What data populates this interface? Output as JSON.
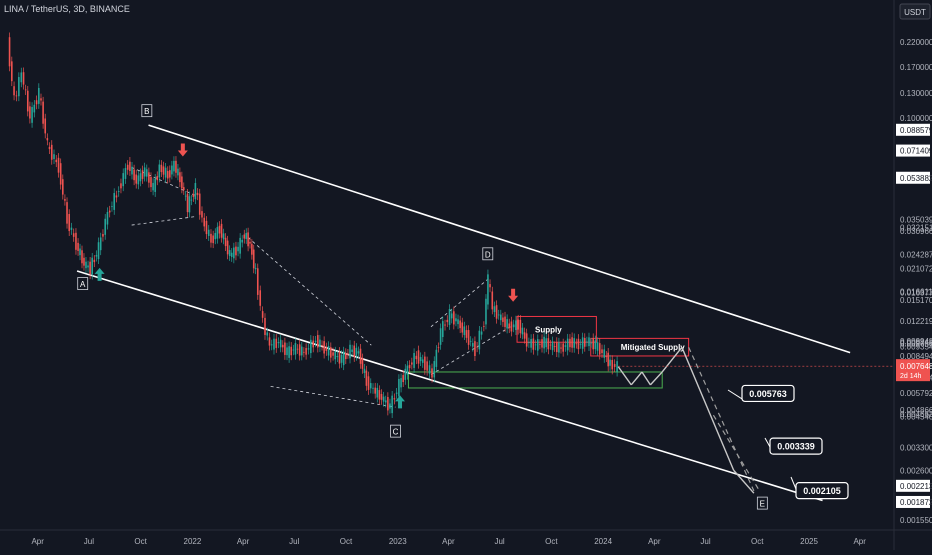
{
  "header": {
    "symbol_line": "LINA / TetherUS, 3D, BINANCE",
    "currency": "USDT"
  },
  "chart_data": {
    "type": "candlestick",
    "title": "LINA / TetherUS, 3D, BINANCE",
    "y_scale": "log",
    "ylim": [
      0.0014,
      0.34
    ],
    "x_range": [
      "2021-01-24",
      "2025-06-01"
    ],
    "y_tick_labels": [
      "0.220000",
      "0.170000",
      "0.130000",
      "0.100000",
      "0.053882",
      "0.035039",
      "0.032151",
      "0.030966",
      "0.024287",
      "0.021072",
      "0.016611",
      "0.016377",
      "0.015170",
      "0.012219",
      "0.009948",
      "0.009748",
      "0.009656",
      "0.009354",
      "0.008494",
      "0.006804",
      "0.005792",
      "0.004866",
      "0.004662",
      "0.004540",
      "0.003300",
      "0.002600",
      "0.002213",
      "0.001872",
      "0.001550"
    ],
    "y_tick_values": [
      0.22,
      0.17,
      0.13,
      0.1,
      0.053882,
      0.035039,
      0.032151,
      0.030966,
      0.024287,
      0.021072,
      0.016611,
      0.016377,
      0.01517,
      0.012219,
      0.009948,
      0.009748,
      0.009656,
      0.009354,
      0.008494,
      0.006804,
      0.005792,
      0.004866,
      0.004662,
      0.00454,
      0.0033,
      0.0026,
      0.002213,
      0.001872,
      0.00155
    ],
    "highlighted_levels": [
      {
        "label": "0.088579",
        "value": 0.088579
      },
      {
        "label": "0.071409",
        "value": 0.071409
      },
      {
        "label": "0.053882",
        "value": 0.053882
      },
      {
        "label": "0.002213",
        "value": 0.002213
      },
      {
        "label": "0.001872",
        "value": 0.001872
      }
    ],
    "current_price": {
      "label": "0.007648",
      "value": 0.007648,
      "countdown": "2d 14h"
    },
    "x_ticks": [
      {
        "label": "Apr",
        "date": "2021-04-01"
      },
      {
        "label": "Jul",
        "date": "2021-07-01"
      },
      {
        "label": "Oct",
        "date": "2021-10-01"
      },
      {
        "label": "2022",
        "date": "2022-01-01"
      },
      {
        "label": "Apr",
        "date": "2022-04-01"
      },
      {
        "label": "Jul",
        "date": "2022-07-01"
      },
      {
        "label": "Oct",
        "date": "2022-10-01"
      },
      {
        "label": "2023",
        "date": "2023-01-01"
      },
      {
        "label": "Apr",
        "date": "2023-04-01"
      },
      {
        "label": "Jul",
        "date": "2023-07-01"
      },
      {
        "label": "Oct",
        "date": "2023-10-01"
      },
      {
        "label": "2024",
        "date": "2024-01-01"
      },
      {
        "label": "Apr",
        "date": "2024-04-01"
      },
      {
        "label": "Jul",
        "date": "2024-07-01"
      },
      {
        "label": "Oct",
        "date": "2024-10-01"
      },
      {
        "label": "2025",
        "date": "2025-01-01"
      },
      {
        "label": "Apr",
        "date": "2025-04-01"
      }
    ],
    "price_path": [
      [
        "2021-02-08",
        0.22
      ],
      [
        "2021-02-20",
        0.12
      ],
      [
        "2021-03-05",
        0.16
      ],
      [
        "2021-03-20",
        0.1
      ],
      [
        "2021-04-05",
        0.13
      ],
      [
        "2021-04-20",
        0.075
      ],
      [
        "2021-05-10",
        0.06
      ],
      [
        "2021-05-25",
        0.035
      ],
      [
        "2021-06-10",
        0.027
      ],
      [
        "2021-06-24",
        0.022
      ],
      [
        "2021-07-05",
        0.021
      ],
      [
        "2021-07-20",
        0.026
      ],
      [
        "2021-08-05",
        0.037
      ],
      [
        "2021-08-25",
        0.048
      ],
      [
        "2021-09-10",
        0.062
      ],
      [
        "2021-09-25",
        0.052
      ],
      [
        "2021-10-10",
        0.058
      ],
      [
        "2021-10-25",
        0.048
      ],
      [
        "2021-11-05",
        0.06
      ],
      [
        "2021-11-20",
        0.055
      ],
      [
        "2021-12-01",
        0.062
      ],
      [
        "2021-12-15",
        0.05
      ],
      [
        "2021-12-25",
        0.04
      ],
      [
        "2022-01-08",
        0.048
      ],
      [
        "2022-01-20",
        0.035
      ],
      [
        "2022-02-05",
        0.028
      ],
      [
        "2022-02-20",
        0.032
      ],
      [
        "2022-03-10",
        0.024
      ],
      [
        "2022-03-25",
        0.026
      ],
      [
        "2022-04-05",
        0.03
      ],
      [
        "2022-04-15",
        0.027
      ],
      [
        "2022-04-25",
        0.02
      ],
      [
        "2022-05-08",
        0.012
      ],
      [
        "2022-05-20",
        0.0095
      ],
      [
        "2022-06-05",
        0.0098
      ],
      [
        "2022-06-20",
        0.0088
      ],
      [
        "2022-07-05",
        0.0092
      ],
      [
        "2022-07-20",
        0.0088
      ],
      [
        "2022-08-10",
        0.01
      ],
      [
        "2022-08-25",
        0.0092
      ],
      [
        "2022-09-10",
        0.0086
      ],
      [
        "2022-09-25",
        0.0082
      ],
      [
        "2022-10-10",
        0.009
      ],
      [
        "2022-10-25",
        0.0088
      ],
      [
        "2022-11-08",
        0.0065
      ],
      [
        "2022-11-20",
        0.006
      ],
      [
        "2022-12-05",
        0.0055
      ],
      [
        "2022-12-20",
        0.005
      ],
      [
        "2023-01-05",
        0.0063
      ],
      [
        "2023-01-20",
        0.0075
      ],
      [
        "2023-02-05",
        0.0085
      ],
      [
        "2023-02-20",
        0.0078
      ],
      [
        "2023-03-05",
        0.007
      ],
      [
        "2023-03-20",
        0.011
      ],
      [
        "2023-04-05",
        0.013
      ],
      [
        "2023-04-20",
        0.012
      ],
      [
        "2023-05-05",
        0.0105
      ],
      [
        "2023-05-20",
        0.009
      ],
      [
        "2023-06-05",
        0.012
      ],
      [
        "2023-06-12",
        0.019
      ],
      [
        "2023-06-20",
        0.014
      ],
      [
        "2023-07-05",
        0.0125
      ],
      [
        "2023-07-20",
        0.0115
      ],
      [
        "2023-08-05",
        0.0118
      ],
      [
        "2023-08-20",
        0.0098
      ],
      [
        "2023-09-05",
        0.0095
      ],
      [
        "2023-09-20",
        0.0098
      ],
      [
        "2023-10-05",
        0.0094
      ],
      [
        "2023-10-20",
        0.0092
      ],
      [
        "2023-11-05",
        0.0098
      ],
      [
        "2023-11-20",
        0.0096
      ],
      [
        "2023-12-05",
        0.0099
      ],
      [
        "2023-12-20",
        0.0095
      ],
      [
        "2024-01-05",
        0.0086
      ],
      [
        "2024-01-15",
        0.0078
      ],
      [
        "2024-01-28",
        0.0076
      ]
    ],
    "channel_lines": [
      {
        "from": [
          "2021-10-15",
          0.093
        ],
        "to": [
          "2025-03-15",
          0.0088
        ]
      },
      {
        "from": [
          "2021-06-10",
          0.0205
        ],
        "to": [
          "2025-01-25",
          0.0019
        ]
      }
    ],
    "zones": [
      {
        "label": "Supply",
        "from": [
          "2023-08-01",
          0.0128
        ],
        "to": [
          "2023-12-20",
          0.0098
        ]
      },
      {
        "label": "Mitigated Supply",
        "from": [
          "2023-12-10",
          0.0102
        ],
        "to": [
          "2024-06-01",
          0.0085
        ]
      },
      {
        "label": "",
        "from": [
          "2023-01-20",
          0.0072
        ],
        "to": [
          "2024-04-15",
          0.0061
        ]
      }
    ],
    "wave_labels": [
      {
        "label": "A",
        "date": "2021-06-20",
        "value": 0.018
      },
      {
        "label": "B",
        "date": "2021-10-12",
        "value": 0.108
      },
      {
        "label": "C",
        "date": "2022-12-28",
        "value": 0.0039
      },
      {
        "label": "D",
        "date": "2023-06-10",
        "value": 0.0245
      },
      {
        "label": "E",
        "date": "2024-10-10",
        "value": 0.00185
      }
    ],
    "target_callouts": [
      {
        "label": "0.005763",
        "value": 0.005763
      },
      {
        "label": "0.003339",
        "value": 0.003339
      },
      {
        "label": "0.002105",
        "value": 0.002105
      }
    ],
    "arrows": [
      {
        "dir": "up",
        "date": "2021-07-20",
        "value": 0.0195,
        "color": "#26a69a"
      },
      {
        "dir": "down",
        "date": "2021-12-15",
        "value": 0.073,
        "color": "#ef5350"
      },
      {
        "dir": "up",
        "date": "2023-01-05",
        "value": 0.0052,
        "color": "#26a69a"
      },
      {
        "dir": "down",
        "date": "2023-07-25",
        "value": 0.0162,
        "color": "#ef5350"
      }
    ],
    "colors": {
      "background": "#131722",
      "up": "#26a69a",
      "down": "#ef5350",
      "channel": "#ffffff",
      "supply_zone": "#f23645",
      "demand_zone": "#4caf50",
      "axis_text": "#b2b5be"
    }
  }
}
